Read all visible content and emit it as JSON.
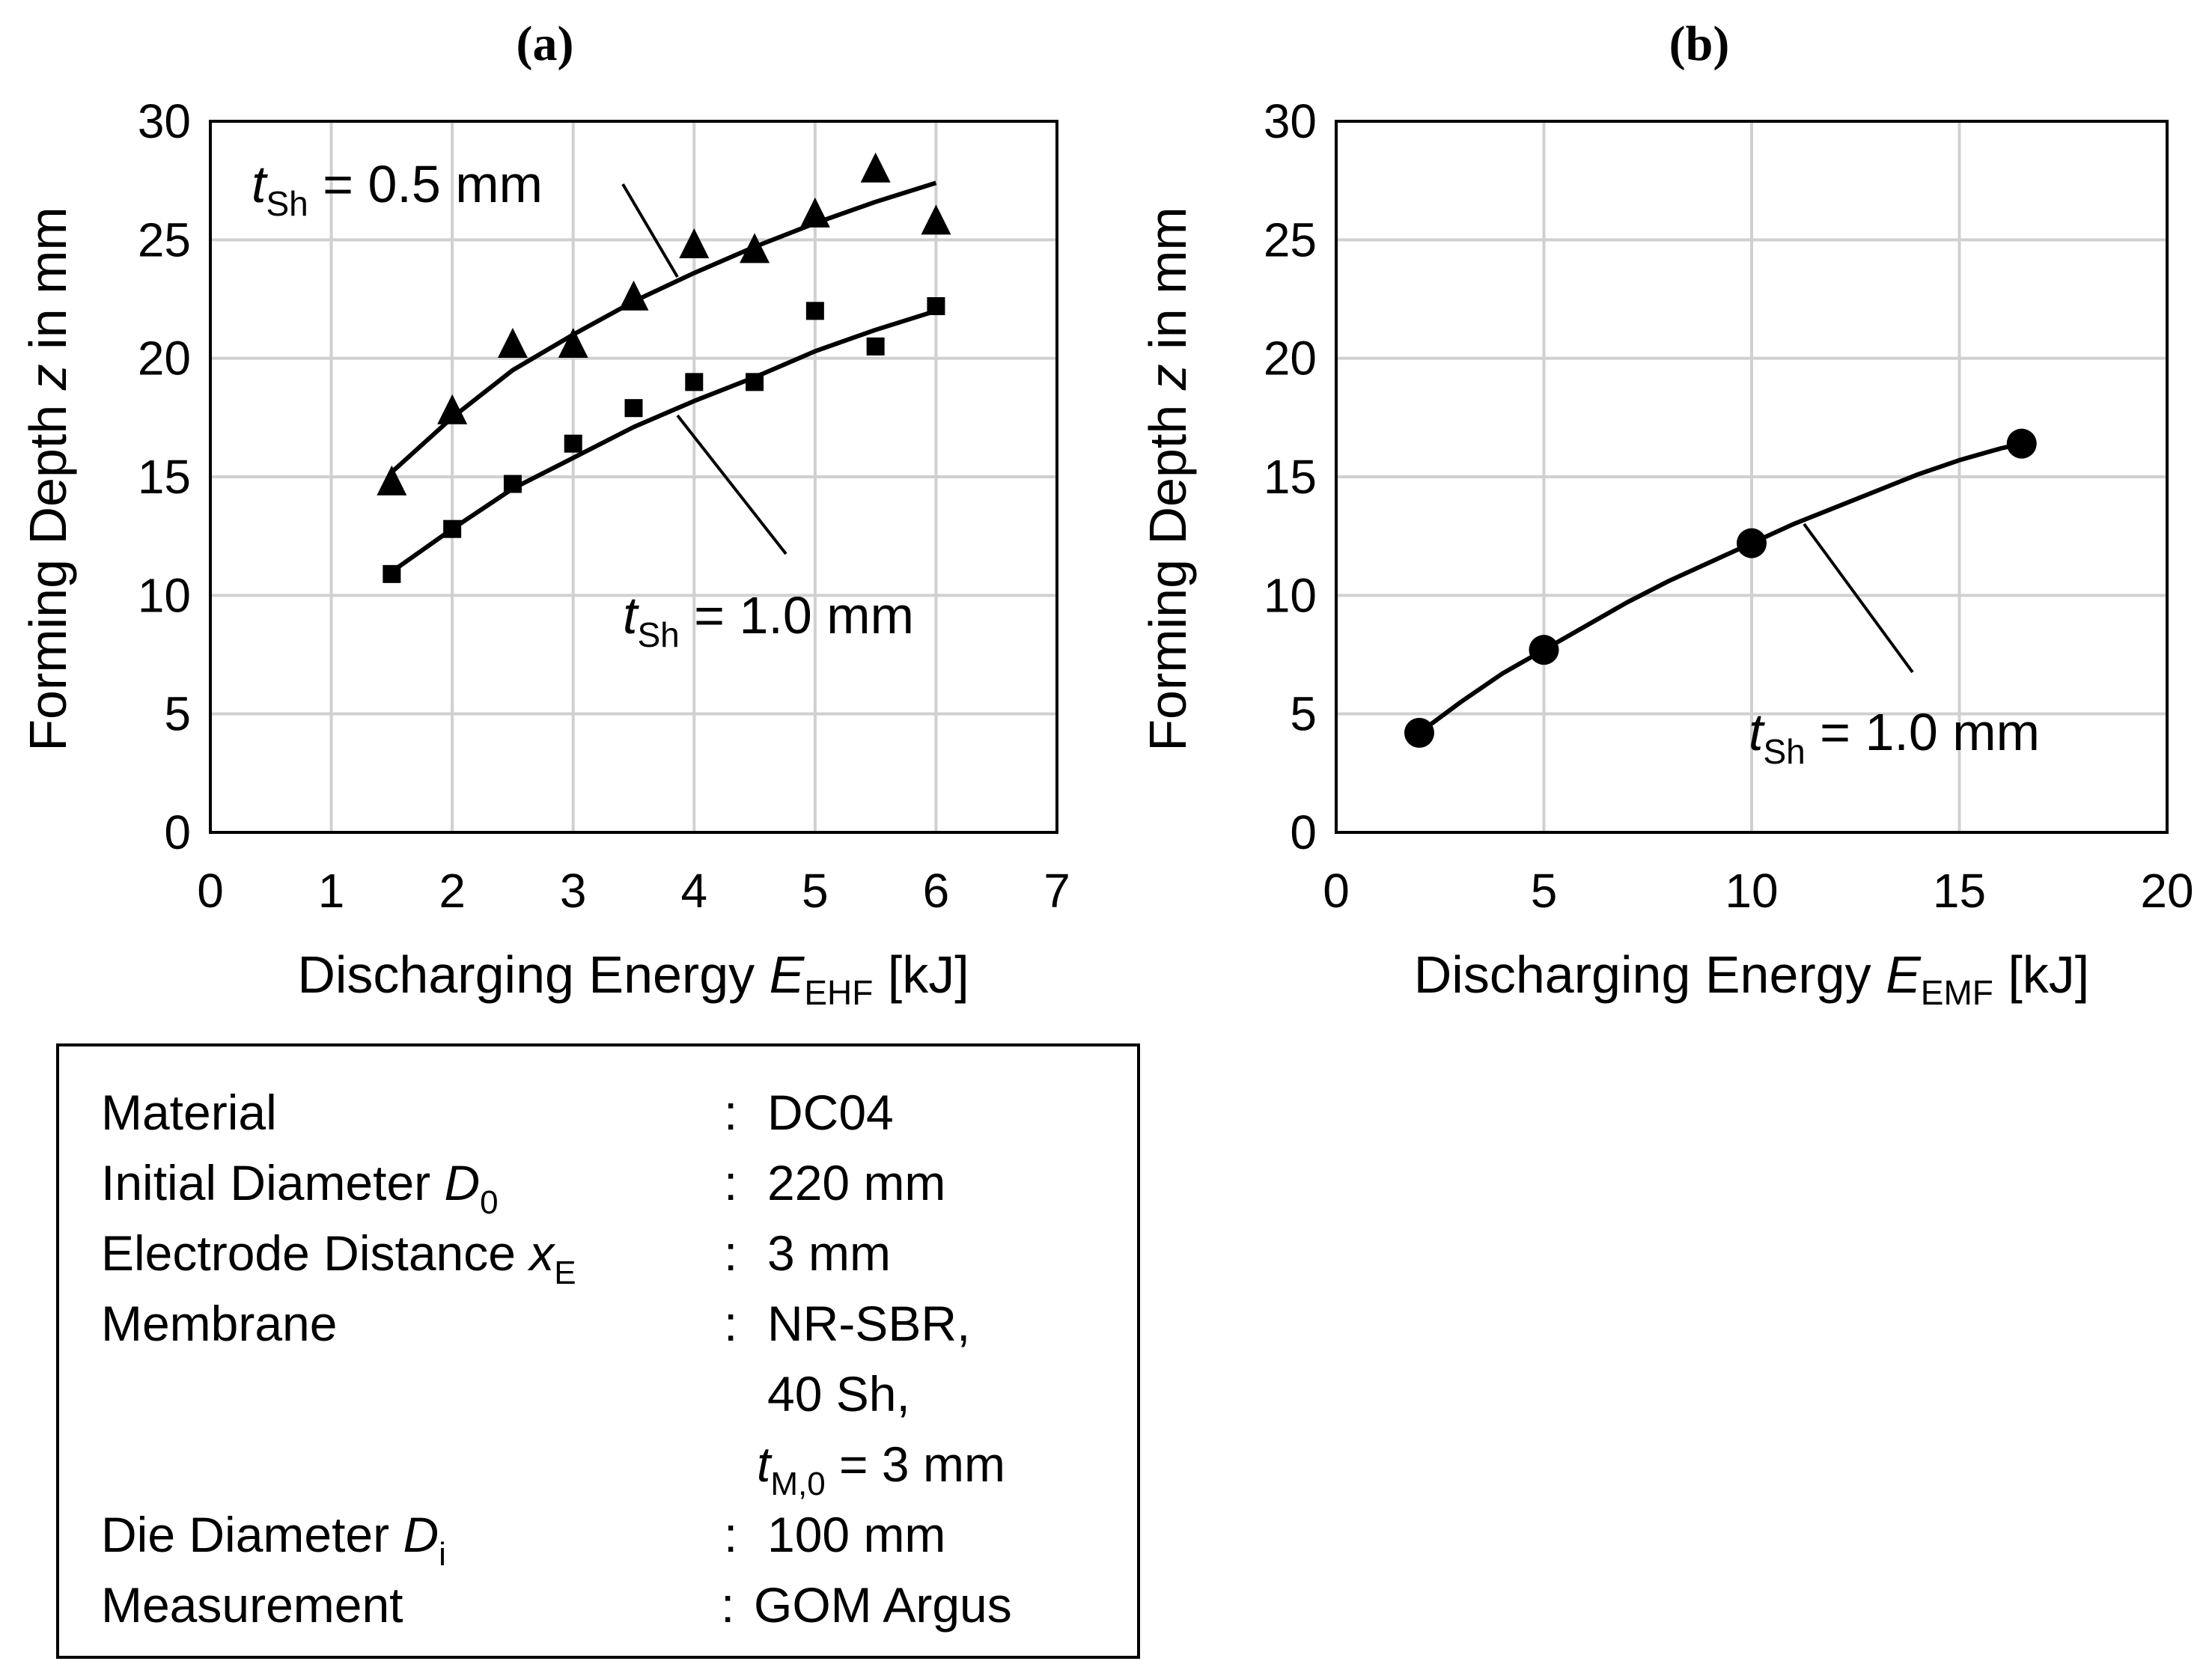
{
  "chart_data": [
    {
      "type": "scatter",
      "panel_label": "(a)",
      "xlabel": {
        "prefix": "Discharging Energy ",
        "symbol": "E",
        "subscript": "EHF",
        "suffix": " [kJ]"
      },
      "ylabel": {
        "prefix": "Forming Depth ",
        "symbol": "z",
        "suffix": " in mm"
      },
      "xlim": [
        0,
        7
      ],
      "ylim": [
        0,
        30
      ],
      "xticks": [
        0,
        1,
        2,
        3,
        4,
        5,
        6,
        7
      ],
      "yticks": [
        0,
        5,
        10,
        15,
        20,
        25,
        30
      ],
      "grid": true,
      "series": [
        {
          "name": "t_Sh = 0.5 mm",
          "marker": "triangle",
          "x": [
            1.5,
            2.0,
            2.5,
            3.0,
            3.5,
            4.0,
            4.5,
            5.0,
            5.5,
            6.0
          ],
          "y": [
            14.7,
            17.7,
            20.5,
            20.5,
            22.5,
            24.7,
            24.5,
            26.0,
            27.9,
            25.7
          ],
          "fit_x": [
            1.5,
            2.0,
            2.5,
            3.0,
            3.5,
            4.0,
            4.5,
            5.0,
            5.5,
            6.0
          ],
          "fit_y": [
            15.2,
            17.5,
            19.5,
            21.0,
            22.4,
            23.6,
            24.7,
            25.7,
            26.6,
            27.4
          ]
        },
        {
          "name": "t_Sh = 1.0 mm",
          "marker": "square",
          "x": [
            1.5,
            2.0,
            2.5,
            3.0,
            3.5,
            4.0,
            4.5,
            5.0,
            5.5,
            6.0
          ],
          "y": [
            10.9,
            12.8,
            14.7,
            16.4,
            17.9,
            19.0,
            19.0,
            22.0,
            20.5,
            22.2
          ],
          "fit_x": [
            1.5,
            2.0,
            2.5,
            3.0,
            3.5,
            4.0,
            4.5,
            5.0,
            5.5,
            6.0
          ],
          "fit_y": [
            11.0,
            12.8,
            14.5,
            15.8,
            17.1,
            18.2,
            19.2,
            20.3,
            21.2,
            22.0
          ]
        }
      ],
      "annotations": [
        {
          "symbol": "t",
          "subscript": "Sh",
          "text": " = 0.5 mm"
        },
        {
          "symbol": "t",
          "subscript": "Sh",
          "text": " = 1.0 mm"
        }
      ]
    },
    {
      "type": "line",
      "panel_label": "(b)",
      "xlabel": {
        "prefix": "Discharging Energy ",
        "symbol": "E",
        "subscript": "EMF",
        "suffix": " [kJ]"
      },
      "ylabel": {
        "prefix": "Forming Depth ",
        "symbol": "z",
        "suffix": " in mm"
      },
      "xlim": [
        0,
        20
      ],
      "ylim": [
        0,
        30
      ],
      "xticks": [
        0,
        5,
        10,
        15,
        20
      ],
      "yticks": [
        0,
        5,
        10,
        15,
        20,
        25,
        30
      ],
      "grid": true,
      "series": [
        {
          "name": "t_Sh = 1.0 mm",
          "marker": "circle",
          "x": [
            2,
            5,
            10,
            16.5
          ],
          "y": [
            4.2,
            7.7,
            12.2,
            16.4
          ],
          "fit_x": [
            2,
            3,
            4,
            5,
            6,
            7,
            8,
            9,
            10,
            11,
            12,
            13,
            14,
            15,
            16,
            16.5
          ],
          "fit_y": [
            4.2,
            5.5,
            6.7,
            7.7,
            8.7,
            9.7,
            10.6,
            11.4,
            12.2,
            13.0,
            13.7,
            14.4,
            15.1,
            15.7,
            16.2,
            16.4
          ]
        }
      ],
      "annotations": [
        {
          "symbol": "t",
          "subscript": "Sh",
          "text": " = 1.0 mm"
        }
      ]
    }
  ],
  "info_table": {
    "rows": [
      {
        "label": "Material",
        "label_symbol": "",
        "label_sub": "",
        "colon": ":",
        "values": [
          "DC04"
        ]
      },
      {
        "label": "Initial Diameter ",
        "label_symbol": "D",
        "label_sub": "0",
        "colon": ":",
        "values": [
          "220 mm"
        ]
      },
      {
        "label": "Electrode Distance ",
        "label_symbol": "x",
        "label_sub": "E",
        "colon": ":",
        "values": [
          "3 mm"
        ]
      },
      {
        "label": "Membrane",
        "label_symbol": "",
        "label_sub": "",
        "colon": ":",
        "values": [
          "NR-SBR,",
          "40 Sh,"
        ]
      },
      {
        "label": "",
        "label_symbol": "",
        "label_sub": "",
        "colon": "",
        "values": [],
        "value_symbol": "t",
        "value_sub": "M,0",
        "value_text": " = 3 mm"
      },
      {
        "label": "Die Diameter ",
        "label_symbol": "D",
        "label_sub": "i",
        "colon": ":",
        "values": [
          "100 mm"
        ]
      },
      {
        "label": "Measurement",
        "label_symbol": "",
        "label_sub": "",
        "colon": ":",
        "values": [
          "GOM Argus"
        ]
      }
    ]
  }
}
